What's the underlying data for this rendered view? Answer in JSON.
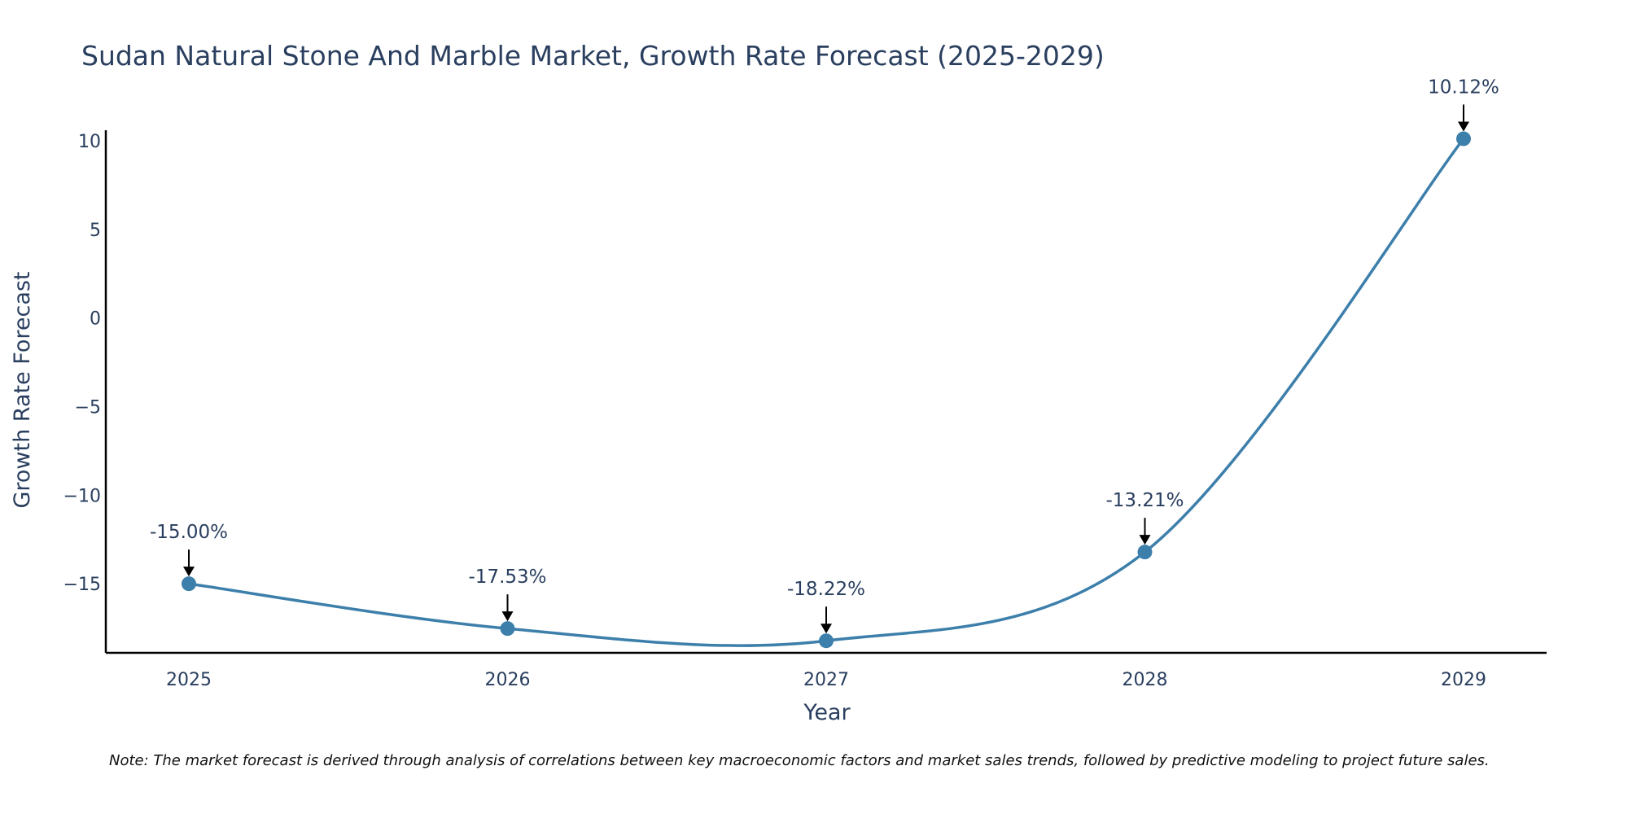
{
  "chart_data": {
    "type": "line",
    "title": "Sudan Natural Stone And Marble Market, Growth Rate Forecast (2025-2029)",
    "xlabel": "Year",
    "ylabel": "Growth Rate Forecast",
    "categories": [
      "2025",
      "2026",
      "2027",
      "2028",
      "2029"
    ],
    "series": [
      {
        "name": "Growth Rate Forecast",
        "values": [
          -15.0,
          -17.53,
          -18.22,
          -13.21,
          10.12
        ]
      }
    ],
    "data_labels": [
      "-15.00%",
      "-17.53%",
      "-18.22%",
      "-13.21%",
      "10.12%"
    ],
    "yticks": [
      10,
      5,
      0,
      -5,
      -10,
      -15
    ],
    "ytick_labels": [
      "10",
      "5",
      "0",
      "−5",
      "−10",
      "−15"
    ],
    "ylim": [
      -18.9,
      10.6
    ],
    "grid": false,
    "line_shape": "spline",
    "colors": {
      "line": "#3d7fab",
      "marker": "#3d7fab",
      "arrow": "#000000",
      "axis": "#000000",
      "text": "#2a3f5f"
    },
    "note": "Note: The market forecast is derived through analysis of correlations between key macroeconomic factors and market sales trends, followed by predictive modeling to project future sales."
  }
}
